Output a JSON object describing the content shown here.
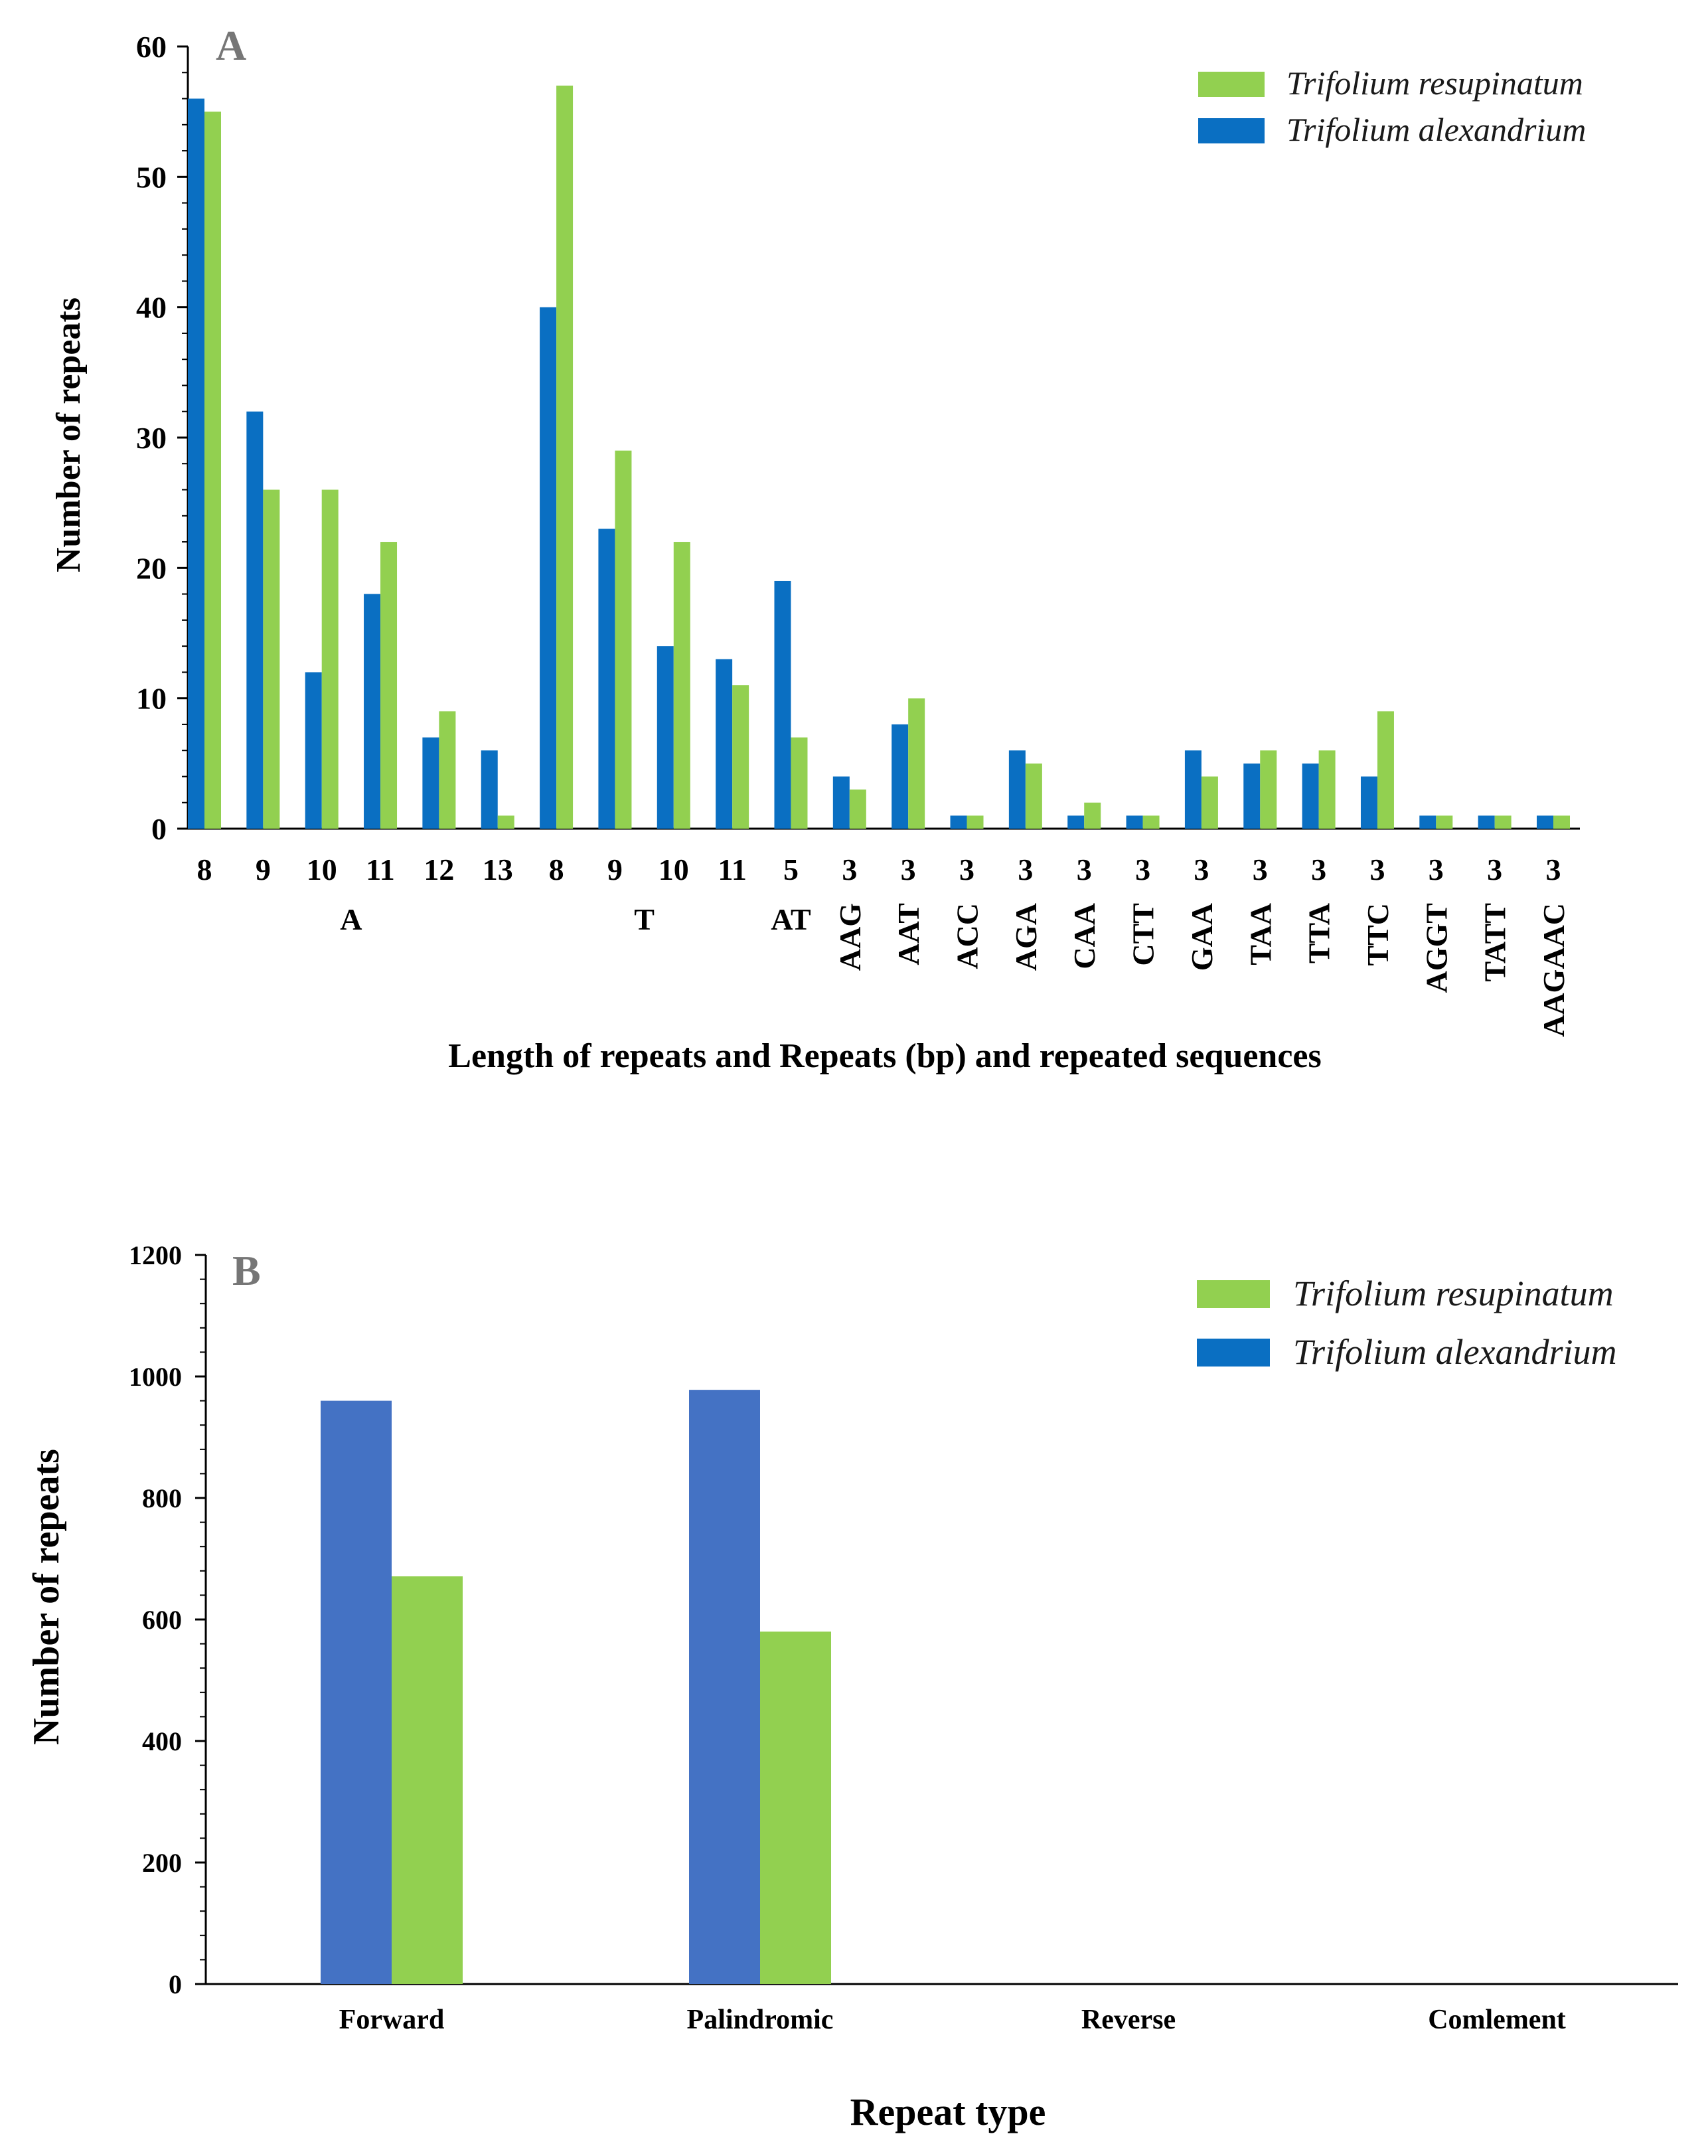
{
  "chart_data": [
    {
      "panel": "A",
      "type": "bar",
      "ylabel": "Number of repeats",
      "xlabel": "Length of repeats and Repeats (bp) and repeated sequences",
      "ylim": [
        0,
        60
      ],
      "yticks": [
        0,
        10,
        20,
        30,
        40,
        50,
        60
      ],
      "categories": [
        "8",
        "9",
        "10",
        "11",
        "12",
        "13",
        "8",
        "9",
        "10",
        "11",
        "5",
        "3",
        "3",
        "3",
        "3",
        "3",
        "3",
        "3",
        "3",
        "3",
        "3",
        "3",
        "3",
        "3"
      ],
      "motif_labels": [
        {
          "label": "A",
          "index": 2.5
        },
        {
          "label": "T",
          "index": 7.5
        },
        {
          "label": "AT",
          "index": 10
        },
        {
          "label": "AAG",
          "index": 11
        },
        {
          "label": "AAT",
          "index": 12
        },
        {
          "label": "ACC",
          "index": 13
        },
        {
          "label": "AGA",
          "index": 14
        },
        {
          "label": "CAA",
          "index": 15
        },
        {
          "label": "CTT",
          "index": 16
        },
        {
          "label": "GAA",
          "index": 17
        },
        {
          "label": "TAA",
          "index": 18
        },
        {
          "label": "TTA",
          "index": 19
        },
        {
          "label": "TTC",
          "index": 20
        },
        {
          "label": "AGGT",
          "index": 21
        },
        {
          "label": "TATT",
          "index": 22
        },
        {
          "label": "AAGAAC",
          "index": 23
        }
      ],
      "series": [
        {
          "name": "Trifolium alexandrium",
          "color": "#0a6fc2",
          "values": [
            56,
            32,
            12,
            18,
            7,
            6,
            40,
            23,
            14,
            13,
            19,
            4,
            8,
            1,
            6,
            1,
            1,
            6,
            5,
            5,
            4,
            1,
            1,
            1
          ]
        },
        {
          "name": "Trifolium resupinatum",
          "color": "#92d050",
          "values": [
            55,
            26,
            26,
            22,
            9,
            1,
            57,
            29,
            22,
            11,
            7,
            3,
            10,
            1,
            5,
            2,
            1,
            4,
            6,
            6,
            9,
            1,
            1,
            1
          ]
        }
      ],
      "legend": [
        {
          "name": "Trifolium resupinatum",
          "color": "#92d050"
        },
        {
          "name": "Trifolium alexandrium",
          "color": "#0a6fc2"
        }
      ]
    },
    {
      "panel": "B",
      "type": "bar",
      "ylabel": "Number of repeats",
      "xlabel": "Repeat type",
      "ylim": [
        0,
        1200
      ],
      "yticks": [
        0,
        200,
        400,
        600,
        800,
        1000,
        1200
      ],
      "categories": [
        "Forward",
        "Palindromic",
        "Reverse",
        "Comlement"
      ],
      "series": [
        {
          "name": "Trifolium alexandrium",
          "color": "#4472c4",
          "values": [
            960,
            978,
            0,
            0
          ]
        },
        {
          "name": "Trifolium resupinatum",
          "color": "#92d050",
          "values": [
            671,
            580,
            0,
            0
          ]
        }
      ],
      "legend": [
        {
          "name": "Trifolium resupinatum",
          "color": "#92d050"
        },
        {
          "name": "Trifolium alexandrium",
          "color": "#0a6fc2"
        }
      ]
    }
  ]
}
